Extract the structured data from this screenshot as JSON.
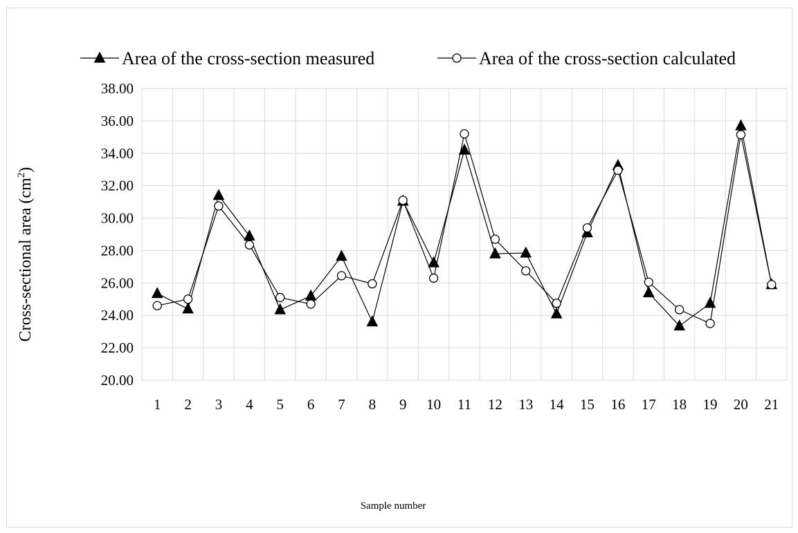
{
  "chart_data": {
    "type": "line",
    "title": "",
    "xlabel": "Sample number",
    "ylabel_main": "Cross-sectional area (cm",
    "ylabel_sup": "2",
    "ylabel_close": ")",
    "ylim": [
      20,
      38
    ],
    "ytick_step": 2,
    "ytick_decimals": 2,
    "grid": true,
    "legend_position": "top",
    "categories": [
      "1",
      "2",
      "3",
      "4",
      "5",
      "6",
      "7",
      "8",
      "9",
      "10",
      "11",
      "12",
      "13",
      "14",
      "15",
      "16",
      "17",
      "18",
      "19",
      "20",
      "21"
    ],
    "series": [
      {
        "name": "Area of the cross-section measured",
        "marker": "triangle-filled",
        "color": "#000000",
        "values": [
          25.35,
          24.4,
          31.4,
          28.9,
          24.35,
          25.2,
          27.65,
          23.6,
          31.05,
          27.25,
          34.2,
          27.8,
          27.85,
          24.1,
          29.1,
          33.25,
          25.4,
          23.35,
          24.75,
          35.7,
          25.9
        ]
      },
      {
        "name": "Area of the cross-section calculated",
        "marker": "circle-open",
        "color": "#000000",
        "values": [
          24.6,
          25.0,
          30.75,
          28.35,
          25.1,
          24.7,
          26.45,
          25.95,
          31.1,
          26.3,
          35.2,
          28.7,
          26.75,
          24.75,
          29.4,
          32.95,
          26.05,
          24.35,
          23.5,
          35.15,
          25.9
        ]
      }
    ]
  }
}
